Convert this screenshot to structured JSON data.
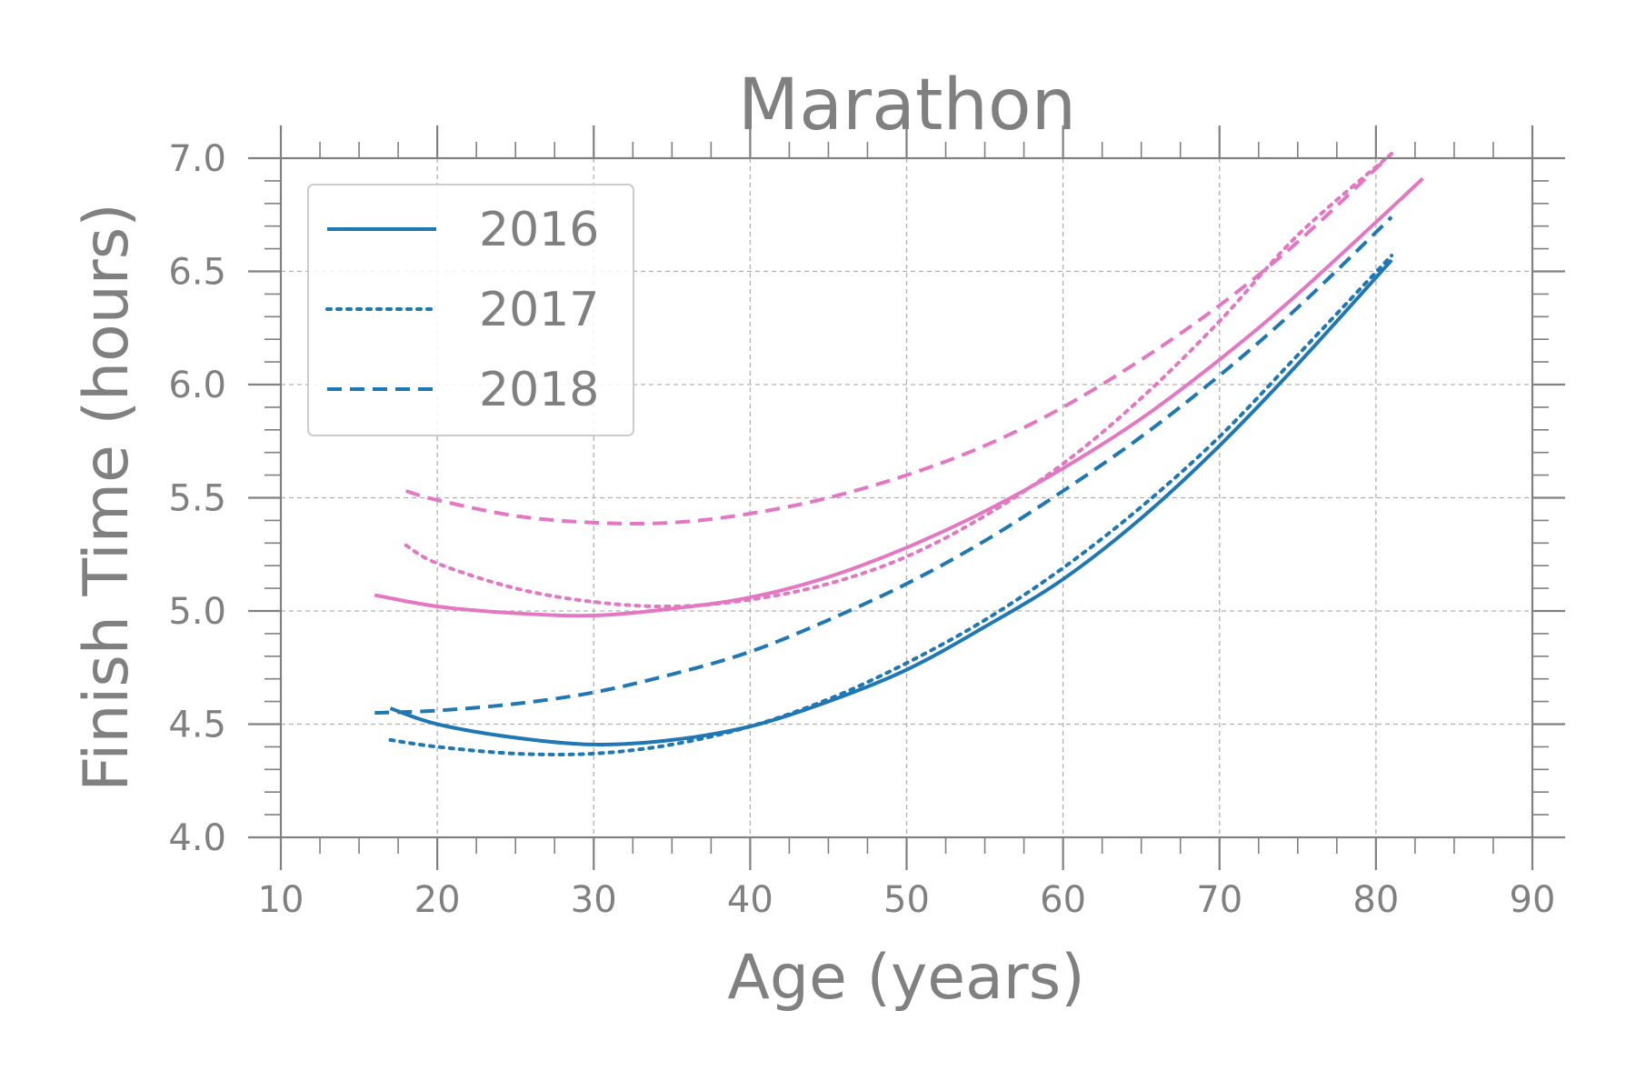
{
  "chart_data": {
    "type": "line",
    "title": "Marathon",
    "xlabel": "Age (years)",
    "ylabel": "Finish Time (hours)",
    "xlim": [
      10,
      90
    ],
    "ylim": [
      4.0,
      7.0
    ],
    "xticks": [
      "10",
      "20",
      "30",
      "40",
      "50",
      "60",
      "70",
      "80",
      "90"
    ],
    "yticks": [
      "4.0",
      "4.5",
      "5.0",
      "5.5",
      "6.0",
      "6.5",
      "7.0"
    ],
    "grid": true,
    "legend_position": "top-left",
    "legend": [
      {
        "label": "2016",
        "style": "solid"
      },
      {
        "label": "2017",
        "style": "dotted"
      },
      {
        "label": "2018",
        "style": "dashed"
      }
    ],
    "colors": {
      "blue": "#1f77b4",
      "pink": "#e377c2",
      "axis": "#808080",
      "grid": "#b0b0b0"
    },
    "series": [
      {
        "year": "2016",
        "color": "blue",
        "style": "solid",
        "x": [
          17,
          20,
          25,
          30,
          35,
          40,
          45,
          50,
          55,
          60,
          65,
          70,
          75,
          81
        ],
        "y": [
          4.57,
          4.5,
          4.44,
          4.41,
          4.43,
          4.49,
          4.6,
          4.74,
          4.93,
          5.14,
          5.41,
          5.73,
          6.09,
          6.55
        ]
      },
      {
        "year": "2017",
        "color": "blue",
        "style": "dotted",
        "x": [
          17,
          20,
          25,
          30,
          35,
          40,
          45,
          50,
          55,
          60,
          65,
          70,
          75,
          81
        ],
        "y": [
          4.43,
          4.4,
          4.37,
          4.37,
          4.41,
          4.49,
          4.61,
          4.77,
          4.96,
          5.19,
          5.46,
          5.77,
          6.13,
          6.57
        ]
      },
      {
        "year": "2018",
        "color": "blue",
        "style": "dashed",
        "x": [
          16,
          20,
          25,
          30,
          35,
          40,
          45,
          50,
          55,
          60,
          65,
          70,
          75,
          81
        ],
        "y": [
          4.55,
          4.56,
          4.59,
          4.64,
          4.72,
          4.82,
          4.96,
          5.12,
          5.31,
          5.53,
          5.77,
          6.04,
          6.34,
          6.74
        ]
      },
      {
        "year": "2016",
        "color": "pink",
        "style": "solid",
        "x": [
          16,
          20,
          25,
          30,
          35,
          40,
          45,
          50,
          55,
          60,
          65,
          70,
          75,
          83
        ],
        "y": [
          5.07,
          5.02,
          4.99,
          4.98,
          5.01,
          5.06,
          5.15,
          5.28,
          5.44,
          5.63,
          5.85,
          6.11,
          6.4,
          6.91
        ]
      },
      {
        "year": "2017",
        "color": "pink",
        "style": "dotted",
        "x": [
          18,
          20,
          25,
          30,
          35,
          40,
          45,
          50,
          55,
          60,
          65,
          70,
          75,
          81
        ],
        "y": [
          5.29,
          5.21,
          5.1,
          5.04,
          5.02,
          5.05,
          5.12,
          5.24,
          5.42,
          5.65,
          5.94,
          6.28,
          6.66,
          7.02
        ]
      },
      {
        "year": "2018",
        "color": "pink",
        "style": "dashed",
        "x": [
          18,
          20,
          25,
          30,
          35,
          40,
          45,
          50,
          55,
          60,
          65,
          70,
          75,
          81
        ],
        "y": [
          5.53,
          5.49,
          5.42,
          5.39,
          5.39,
          5.43,
          5.5,
          5.6,
          5.73,
          5.9,
          6.11,
          6.35,
          6.63,
          7.02
        ]
      }
    ]
  }
}
